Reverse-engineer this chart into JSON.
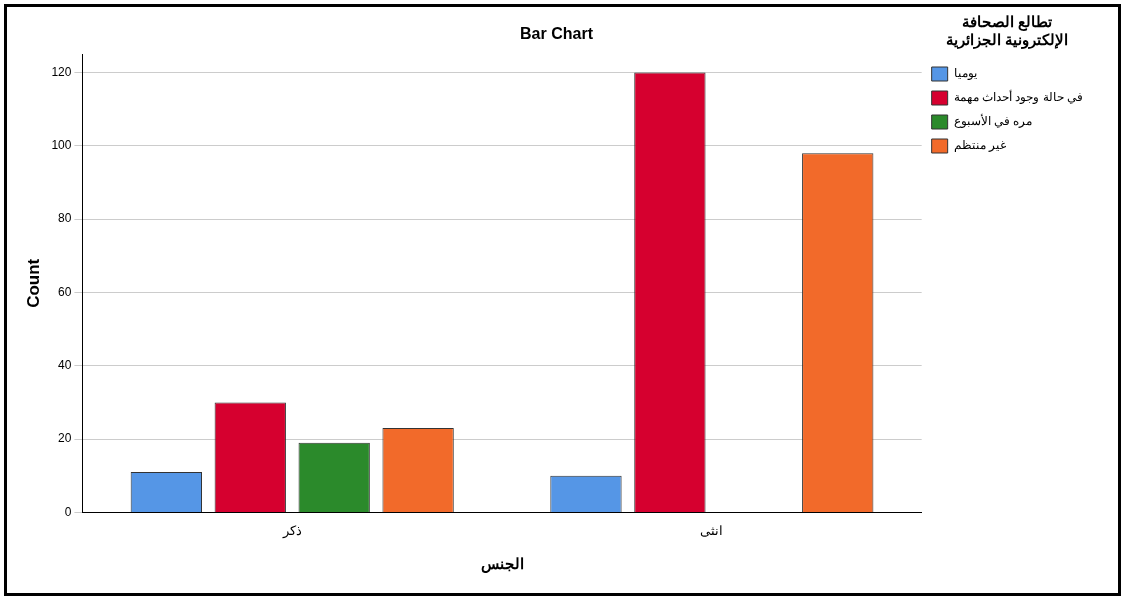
{
  "chart_data": {
    "type": "bar",
    "title": "Bar Chart",
    "xlabel": "الجنس",
    "ylabel": "Count",
    "legend_title": "تطالع الصحافة\nالإلكترونية الجزائرية",
    "categories": [
      "ذكر",
      "انثى"
    ],
    "series": [
      {
        "name": "يوميا",
        "color": "#5596e6",
        "values": [
          11,
          10
        ]
      },
      {
        "name": "في حالة وجود أحداث مهمة",
        "color": "#d6002f",
        "values": [
          30,
          120
        ]
      },
      {
        "name": "مره في الأسبوع",
        "color": "#2b8a2b",
        "values": [
          19,
          0
        ]
      },
      {
        "name": "غير منتظم",
        "color": "#f26a2a",
        "values": [
          23,
          98
        ]
      }
    ],
    "ylim": [
      0,
      125
    ],
    "yticks": [
      0,
      20,
      40,
      60,
      80,
      100,
      120
    ],
    "grid": "y",
    "legend": "top right"
  }
}
